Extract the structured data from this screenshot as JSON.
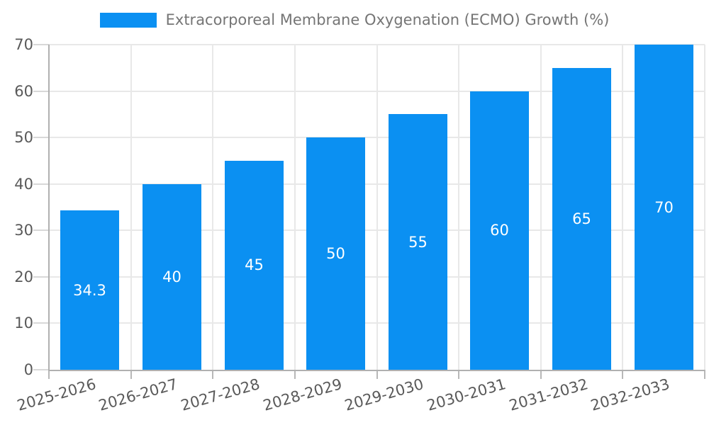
{
  "chart_data": {
    "type": "bar",
    "title": "Extracorporeal Membrane Oxygenation (ECMO) Growth (%)",
    "categories": [
      "2025-2026",
      "2026-2027",
      "2027-2028",
      "2028-2029",
      "2029-2030",
      "2030-2031",
      "2031-2032",
      "2032-2033"
    ],
    "values": [
      34.3,
      40,
      45,
      50,
      55,
      60,
      65,
      70
    ],
    "bar_labels": [
      "34.3",
      "40",
      "45",
      "50",
      "55",
      "60",
      "65",
      "70"
    ],
    "xlabel": "",
    "ylabel": "",
    "ylim": [
      0,
      70
    ],
    "yticks": [
      0,
      10,
      20,
      30,
      40,
      50,
      60,
      70
    ],
    "ytick_labels": [
      "0",
      "10",
      "20",
      "30",
      "40",
      "50",
      "60",
      "70"
    ],
    "grid": true,
    "legend_position": "top-center",
    "x_label_rotation_deg": -16,
    "colors": {
      "bar": "#0b90f2",
      "bar_label_text": "#ffffff",
      "axis_label_text": "#595959",
      "legend_text": "#757575",
      "gridline": "#e8e8e8",
      "axis_line": "#b0b0b0",
      "background": "#ffffff"
    }
  }
}
